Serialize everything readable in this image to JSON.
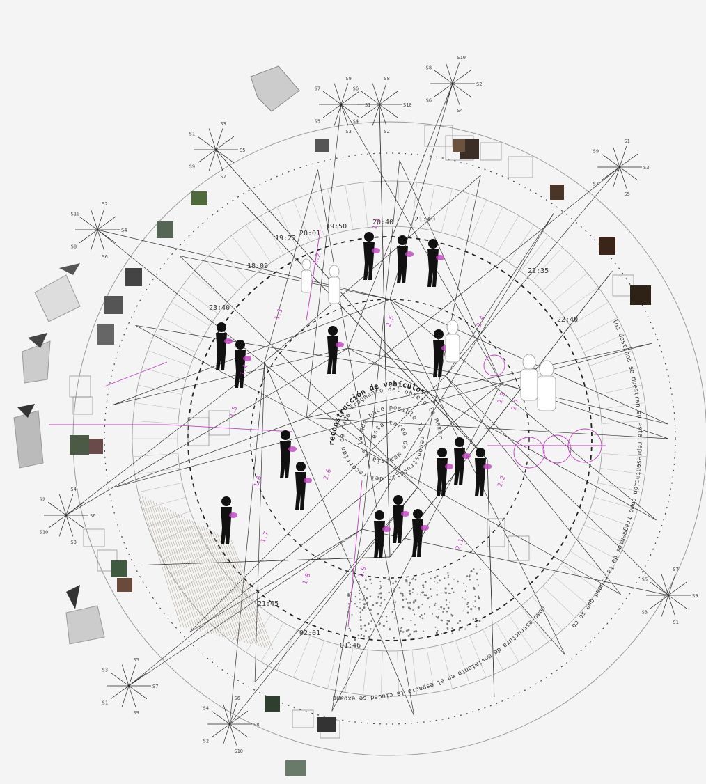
{
  "diagram": {
    "center_title": "reconstrucción de vehículos",
    "spiral_text": "esta tarea de memoria es la que hace posible la reconstrucción del recorrido de cada fragmento del objeto la memoria guarda el rastro",
    "time_marks": [
      "19:50",
      "20:40",
      "21:40",
      "22:35",
      "20:01",
      "22:40",
      "21:45",
      "23:40",
      "02:01",
      "01:46",
      "19:22",
      "18:09"
    ],
    "outer_ring_text": "los destinos se muestran en esta representación como fragmentos de la ciudad que se conectan por medio de rutas y recorridos del cuerpo",
    "bottom_ring_text": "como estructura de movimiento en el espacio la ciudad se expande",
    "magenta_labels": [
      "1.1",
      "1.2",
      "1.3",
      "1.4",
      "1.5",
      "1.6",
      "1.7",
      "1.8",
      "1.9",
      "2.1",
      "2.2",
      "2.3",
      "2.4",
      "2.5",
      "2.6",
      "2.7"
    ],
    "node_labels": [
      "S1",
      "S2",
      "S3",
      "S4",
      "S5",
      "S6",
      "S7",
      "S8",
      "S9",
      "S10"
    ],
    "colors": {
      "ink": "#222222",
      "magenta": "#c040c0",
      "ring": "#9a9a9a",
      "paper": "#f4f4f4"
    }
  }
}
